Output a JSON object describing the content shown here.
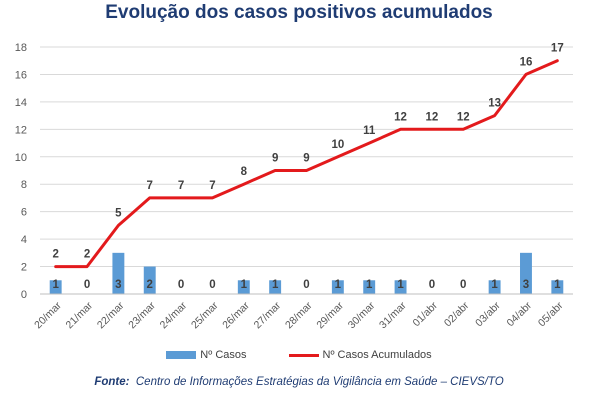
{
  "chart_data": {
    "type": "bar+line",
    "title": "Evolução dos casos positivos acumulados",
    "categories": [
      "20/mar",
      "21/mar",
      "22/mar",
      "23/mar",
      "24/mar",
      "25/mar",
      "26/mar",
      "27/mar",
      "28/mar",
      "29/mar",
      "30/mar",
      "31/mar",
      "01/abr",
      "02/abr",
      "03/abr",
      "04/abr",
      "05/abr"
    ],
    "series": [
      {
        "name": "Nº Casos",
        "kind": "bar",
        "color": "#5b9bd5",
        "values": [
          1,
          0,
          3,
          2,
          0,
          0,
          1,
          1,
          0,
          1,
          1,
          1,
          0,
          0,
          1,
          3,
          1
        ]
      },
      {
        "name": "Nº Casos Acumulados",
        "kind": "line",
        "color": "#e31a1c",
        "values": [
          2,
          2,
          5,
          7,
          7,
          7,
          8,
          9,
          9,
          10,
          11,
          12,
          12,
          12,
          13,
          16,
          17
        ]
      }
    ],
    "yticks": [
      0,
      2,
      4,
      6,
      8,
      10,
      12,
      14,
      16,
      18
    ],
    "ylim": [
      0,
      18
    ],
    "grid": true,
    "legend_position": "bottom"
  },
  "source": {
    "label": "Fonte:",
    "text": "Centro de Informações Estratégias da Vigilância em Saúde – CIEVS/TO"
  }
}
